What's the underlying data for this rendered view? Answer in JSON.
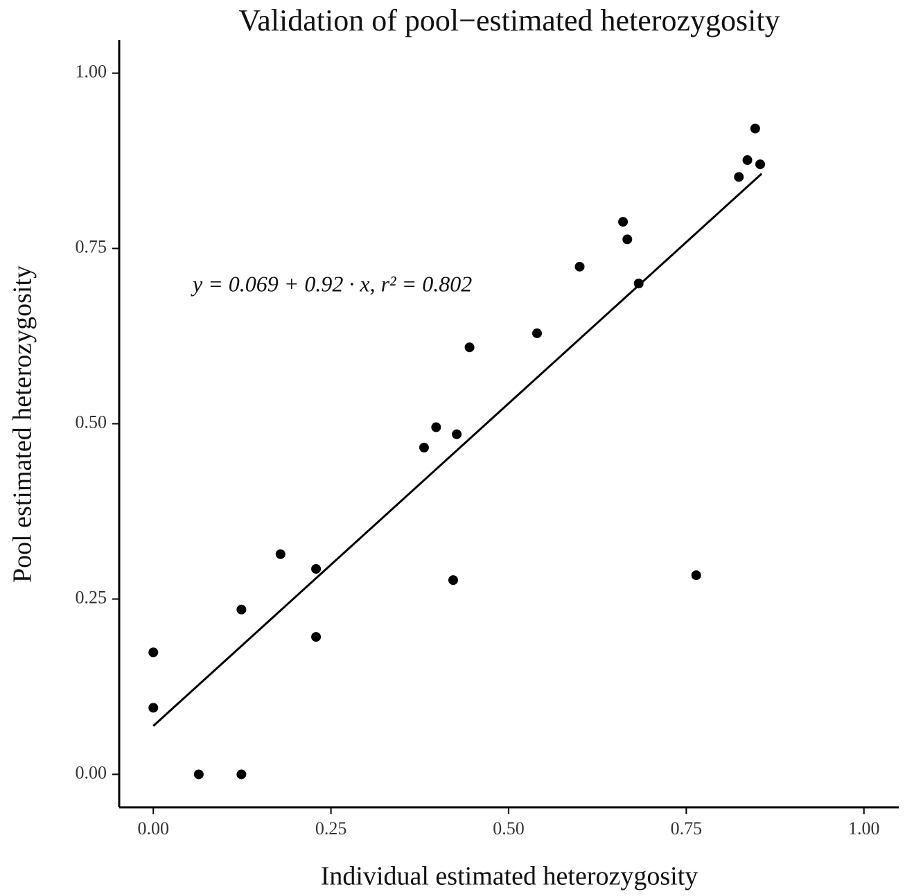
{
  "chart_data": {
    "type": "scatter",
    "title": "Validation of pool−estimated heterozygosity",
    "x_label": "Individual estimated heterozygosity",
    "y_label": "Pool estimated heterozygosity",
    "annotation": "y = 0.069 + 0.92 · x,  r² = 0.802",
    "color": "#000000",
    "x": [
      0,
      0,
      0.064,
      0.124,
      0.124,
      0.179,
      0.229,
      0.229,
      0.381,
      0.398,
      0.427,
      0.422,
      0.445,
      0.54,
      0.6,
      0.661,
      0.667,
      0.683,
      0.764,
      0.824,
      0.836,
      0.847,
      0.854
    ],
    "values": [
      0.174,
      0.095,
      0,
      0,
      0.235,
      0.314,
      0.293,
      0.196,
      0.466,
      0.495,
      0.485,
      0.277,
      0.609,
      0.629,
      0.724,
      0.788,
      0.763,
      0.7,
      0.284,
      0.852,
      0.876,
      0.921,
      0.87
    ],
    "fit": {
      "intercept": 0.069,
      "slope": 0.92,
      "x": [
        0,
        0.856
      ]
    },
    "xlim": [
      -0.048,
      1.049
    ],
    "ylim": [
      -0.047,
      1.047
    ],
    "xticks": [
      {
        "value": 0,
        "label": "0.00"
      },
      {
        "value": 0.25,
        "label": "0.25"
      },
      {
        "value": 0.5,
        "label": "0.50"
      },
      {
        "value": 0.75,
        "label": "0.75"
      },
      {
        "value": 1,
        "label": "1.00"
      }
    ],
    "yticks": [
      {
        "value": 0,
        "label": "0.00"
      },
      {
        "value": 0.25,
        "label": "0.25"
      },
      {
        "value": 0.5,
        "label": "0.50"
      },
      {
        "value": 0.75,
        "label": "0.75"
      },
      {
        "value": 1,
        "label": "1.00"
      }
    ],
    "grid": false
  }
}
